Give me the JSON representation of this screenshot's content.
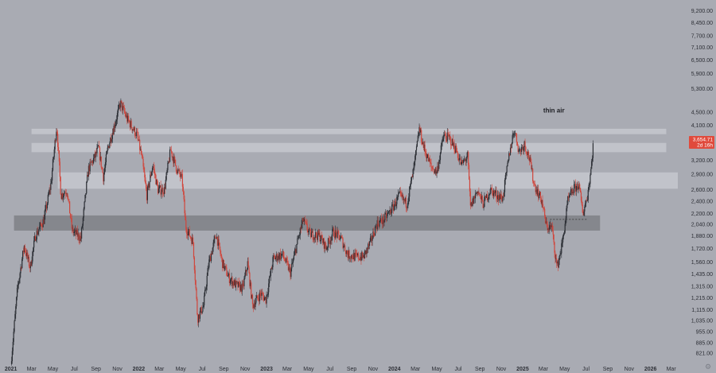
{
  "chart_data": {
    "type": "candlestick",
    "title": "",
    "y_scale": "log",
    "y_ticks": [
      821,
      885,
      955,
      1035,
      1115,
      1215,
      1315,
      1435,
      1560,
      1720,
      1880,
      2040,
      2200,
      2400,
      2600,
      2900,
      3200,
      3600,
      4100,
      4500,
      5300,
      5900,
      6500,
      7100,
      7700,
      8450,
      9200
    ],
    "y_tick_labels": [
      "821.00",
      "885.00",
      "955.00",
      "1,035.00",
      "1,115.00",
      "1,215.00",
      "1,315.00",
      "1,435.00",
      "1,560.00",
      "1,720.00",
      "1,880.00",
      "2,040.00",
      "2,200.00",
      "2,400.00",
      "2,600.00",
      "2,900.00",
      "3,200.00",
      "3,600.00",
      "4,100.00",
      "4,500.00",
      "5,300.00",
      "5,900.00",
      "6,500.00",
      "7,100.00",
      "7,700.00",
      "8,450.00",
      "9,200.00"
    ],
    "y_range": [
      790,
      9700
    ],
    "x_range": [
      "2020-12-01",
      "2026-03-20"
    ],
    "x_ticks": [
      {
        "label": "2021",
        "date": "2021-01-01",
        "year": true
      },
      {
        "label": "Mar",
        "date": "2021-03-01"
      },
      {
        "label": "May",
        "date": "2021-05-01"
      },
      {
        "label": "Jul",
        "date": "2021-07-01"
      },
      {
        "label": "Sep",
        "date": "2021-09-01"
      },
      {
        "label": "Nov",
        "date": "2021-11-01"
      },
      {
        "label": "2022",
        "date": "2022-01-01",
        "year": true
      },
      {
        "label": "Mar",
        "date": "2022-03-01"
      },
      {
        "label": "May",
        "date": "2022-05-01"
      },
      {
        "label": "Jul",
        "date": "2022-07-01"
      },
      {
        "label": "Sep",
        "date": "2022-09-01"
      },
      {
        "label": "Nov",
        "date": "2022-11-01"
      },
      {
        "label": "2023",
        "date": "2023-01-01",
        "year": true
      },
      {
        "label": "Mar",
        "date": "2023-03-01"
      },
      {
        "label": "May",
        "date": "2023-05-01"
      },
      {
        "label": "Jul",
        "date": "2023-07-01"
      },
      {
        "label": "Sep",
        "date": "2023-09-01"
      },
      {
        "label": "Nov",
        "date": "2023-11-01"
      },
      {
        "label": "2024",
        "date": "2024-01-01",
        "year": true
      },
      {
        "label": "Mar",
        "date": "2024-03-01"
      },
      {
        "label": "May",
        "date": "2024-05-01"
      },
      {
        "label": "Jul",
        "date": "2024-07-01"
      },
      {
        "label": "Sep",
        "date": "2024-09-01"
      },
      {
        "label": "Nov",
        "date": "2024-11-01"
      },
      {
        "label": "2025",
        "date": "2025-01-01",
        "year": true
      },
      {
        "label": "Mar",
        "date": "2025-03-01"
      },
      {
        "label": "May",
        "date": "2025-05-01"
      },
      {
        "label": "Jul",
        "date": "2025-07-01"
      },
      {
        "label": "Sep",
        "date": "2025-09-01"
      },
      {
        "label": "Nov",
        "date": "2025-11-01"
      },
      {
        "label": "2026",
        "date": "2026-01-01",
        "year": true
      },
      {
        "label": "Mar",
        "date": "2026-03-01"
      }
    ],
    "price_path": [
      [
        "2021-01-01",
        760
      ],
      [
        "2021-01-20",
        1300
      ],
      [
        "2021-02-08",
        1750
      ],
      [
        "2021-02-25",
        1500
      ],
      [
        "2021-03-12",
        1880
      ],
      [
        "2021-04-05",
        2100
      ],
      [
        "2021-04-25",
        2700
      ],
      [
        "2021-05-12",
        4100
      ],
      [
        "2021-05-24",
        2500
      ],
      [
        "2021-06-10",
        2600
      ],
      [
        "2021-06-25",
        1950
      ],
      [
        "2021-07-20",
        1850
      ],
      [
        "2021-08-10",
        3000
      ],
      [
        "2021-08-30",
        3300
      ],
      [
        "2021-09-08",
        3500
      ],
      [
        "2021-09-22",
        2850
      ],
      [
        "2021-10-05",
        3500
      ],
      [
        "2021-10-25",
        4150
      ],
      [
        "2021-11-10",
        4800
      ],
      [
        "2021-11-28",
        4300
      ],
      [
        "2021-12-10",
        4100
      ],
      [
        "2021-12-28",
        3800
      ],
      [
        "2022-01-10",
        3250
      ],
      [
        "2022-01-24",
        2500
      ],
      [
        "2022-02-10",
        3100
      ],
      [
        "2022-02-25",
        2600
      ],
      [
        "2022-03-15",
        2600
      ],
      [
        "2022-04-02",
        3450
      ],
      [
        "2022-04-20",
        3000
      ],
      [
        "2022-05-05",
        2800
      ],
      [
        "2022-05-15",
        2000
      ],
      [
        "2022-06-05",
        1800
      ],
      [
        "2022-06-18",
        1050
      ],
      [
        "2022-07-05",
        1150
      ],
      [
        "2022-07-20",
        1550
      ],
      [
        "2022-08-10",
        1900
      ],
      [
        "2022-08-28",
        1550
      ],
      [
        "2022-09-15",
        1400
      ],
      [
        "2022-10-05",
        1330
      ],
      [
        "2022-10-25",
        1300
      ],
      [
        "2022-11-08",
        1550
      ],
      [
        "2022-11-22",
        1150
      ],
      [
        "2022-12-15",
        1250
      ],
      [
        "2022-12-30",
        1200
      ],
      [
        "2023-01-20",
        1600
      ],
      [
        "2023-02-15",
        1650
      ],
      [
        "2023-03-10",
        1450
      ],
      [
        "2023-03-30",
        1800
      ],
      [
        "2023-04-15",
        2100
      ],
      [
        "2023-05-05",
        1900
      ],
      [
        "2023-06-01",
        1880
      ],
      [
        "2023-06-20",
        1730
      ],
      [
        "2023-07-10",
        1930
      ],
      [
        "2023-08-01",
        1850
      ],
      [
        "2023-08-20",
        1650
      ],
      [
        "2023-09-10",
        1620
      ],
      [
        "2023-10-05",
        1620
      ],
      [
        "2023-10-25",
        1800
      ],
      [
        "2023-11-12",
        2050
      ],
      [
        "2023-12-01",
        2100
      ],
      [
        "2023-12-28",
        2300
      ],
      [
        "2024-01-15",
        2500
      ],
      [
        "2024-02-05",
        2350
      ],
      [
        "2024-02-25",
        3000
      ],
      [
        "2024-03-12",
        4000
      ],
      [
        "2024-03-25",
        3500
      ],
      [
        "2024-04-15",
        3050
      ],
      [
        "2024-05-01",
        2950
      ],
      [
        "2024-05-20",
        3800
      ],
      [
        "2024-06-05",
        3750
      ],
      [
        "2024-06-25",
        3450
      ],
      [
        "2024-07-10",
        3100
      ],
      [
        "2024-07-28",
        3300
      ],
      [
        "2024-08-05",
        2300
      ],
      [
        "2024-08-25",
        2600
      ],
      [
        "2024-09-10",
        2350
      ],
      [
        "2024-10-01",
        2600
      ],
      [
        "2024-10-20",
        2500
      ],
      [
        "2024-11-05",
        2450
      ],
      [
        "2024-11-25",
        3400
      ],
      [
        "2024-12-08",
        4000
      ],
      [
        "2024-12-22",
        3400
      ],
      [
        "2025-01-06",
        3600
      ],
      [
        "2025-01-20",
        3250
      ],
      [
        "2025-02-03",
        2700
      ],
      [
        "2025-02-25",
        2400
      ],
      [
        "2025-03-10",
        2000
      ],
      [
        "2025-03-25",
        2000
      ],
      [
        "2025-04-09",
        1500
      ],
      [
        "2025-04-25",
        1800
      ],
      [
        "2025-05-10",
        2400
      ],
      [
        "2025-05-25",
        2600
      ],
      [
        "2025-06-10",
        2700
      ],
      [
        "2025-06-22",
        2200
      ],
      [
        "2025-07-05",
        2500
      ],
      [
        "2025-07-15",
        3000
      ],
      [
        "2025-07-22",
        3650
      ]
    ],
    "zones": [
      {
        "low": 3850,
        "high": 4000,
        "from": "2021-03-01",
        "to": "2026-02-15",
        "color": "#c1c3ca"
      },
      {
        "low": 3390,
        "high": 3620,
        "from": "2021-03-01",
        "to": "2026-02-15",
        "color": "#c1c3ca"
      },
      {
        "low": 2620,
        "high": 2940,
        "from": "2021-05-15",
        "to": "2026-03-20",
        "color": "#c1c3ca"
      },
      {
        "low": 1950,
        "high": 2170,
        "from": "2021-01-10",
        "to": "2025-08-10",
        "color": "#85878d"
      }
    ],
    "dotted_level": {
      "value": 2110,
      "from": "2025-03-20",
      "to": "2025-07-05"
    },
    "annotations": [
      {
        "text": "thin air",
        "x": "2025-03-01",
        "y": 4480
      }
    ],
    "last_price": {
      "value": 3654.71,
      "label": "3,654.71",
      "sub": "2d 16h",
      "color": "#e04a3c"
    },
    "colors": {
      "up": "#2a2d33",
      "down": "#d0463c",
      "background": "#a9abb3",
      "axis_text": "#2d2f36"
    }
  }
}
